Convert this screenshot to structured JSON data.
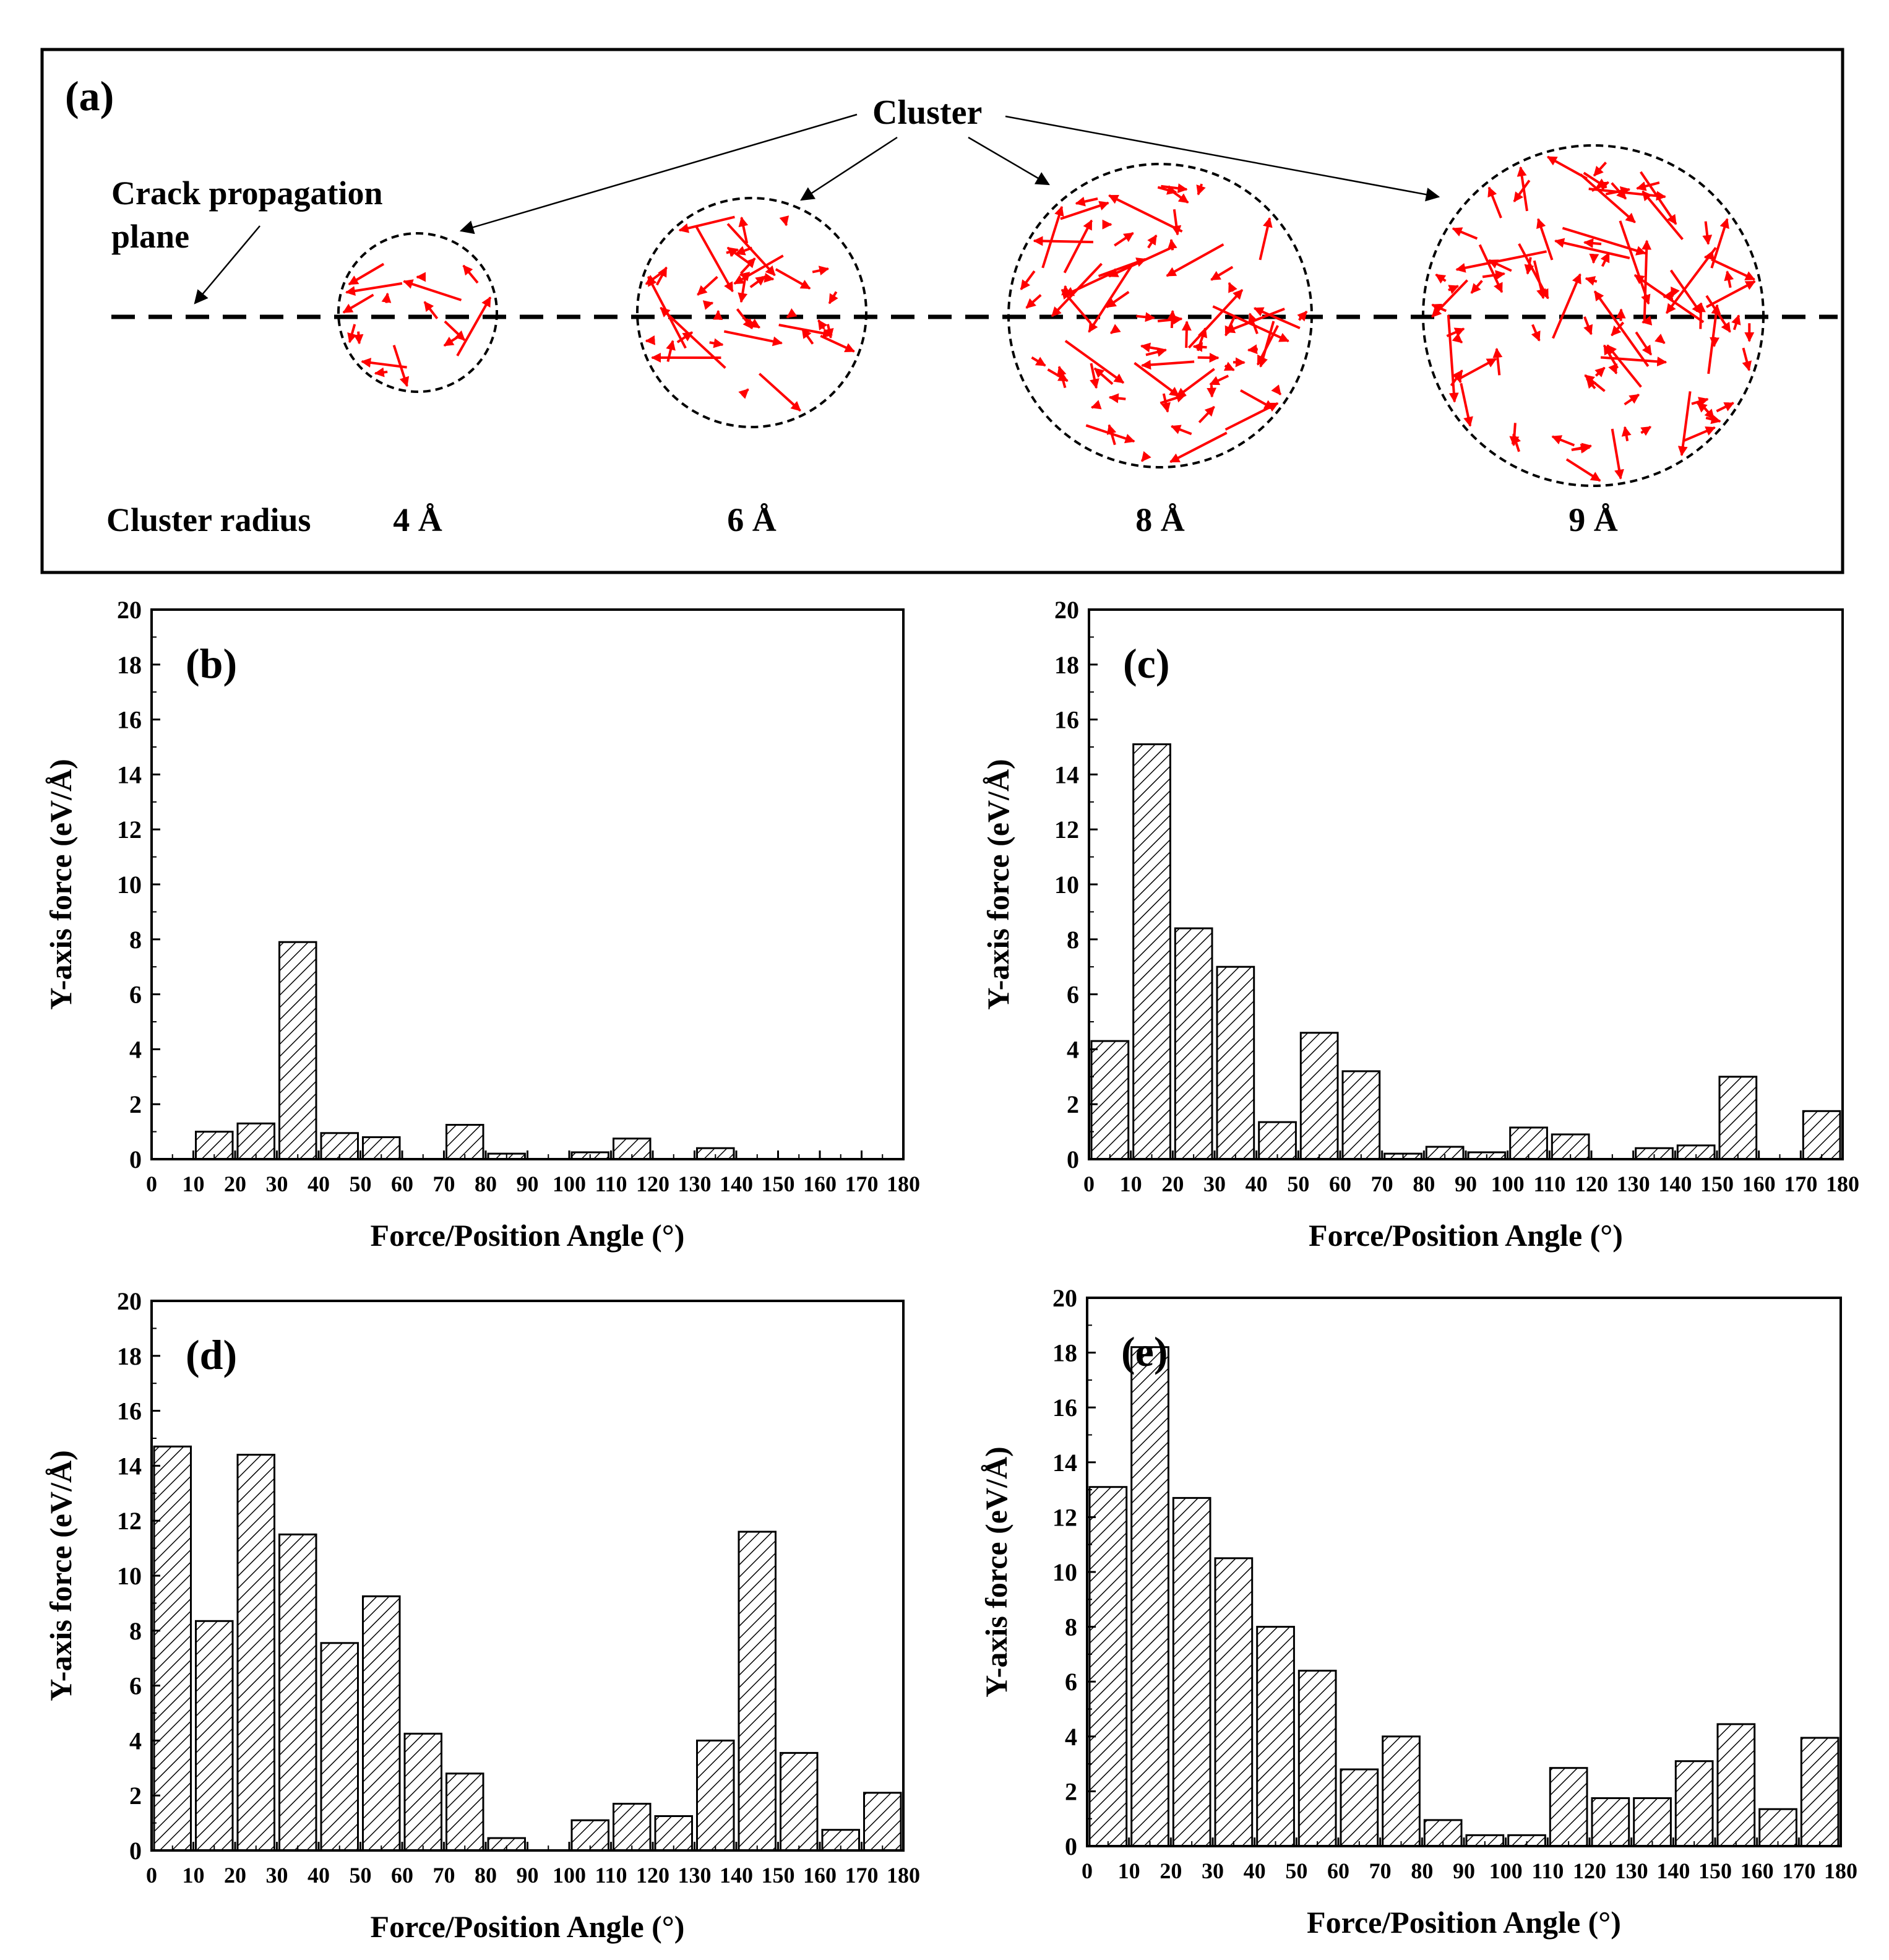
{
  "panel_a": {
    "label": "(a)",
    "cluster_label": "Cluster",
    "crack_label_line1": "Crack propagation",
    "crack_label_line2": "plane",
    "radius_title": "Cluster radius",
    "radii": [
      "4 Å",
      "6 Å",
      "8 Å",
      "9 Å"
    ],
    "arrow_color": "#ff0000"
  },
  "chart_data": [
    {
      "type": "bar",
      "panel": "(b)",
      "xlabel": "Force/Position Angle (°)",
      "ylabel": "Y-axis force (eV/Å)",
      "xlim": [
        0,
        180
      ],
      "ylim": [
        0,
        20
      ],
      "xticks": [
        0,
        10,
        20,
        30,
        40,
        50,
        60,
        70,
        80,
        90,
        100,
        110,
        120,
        130,
        140,
        150,
        160,
        170,
        180
      ],
      "yticks": [
        0,
        2,
        4,
        6,
        8,
        10,
        12,
        14,
        16,
        18,
        20
      ],
      "categories": [
        "5",
        "15",
        "25",
        "35",
        "45",
        "55",
        "65",
        "75",
        "85",
        "95",
        "105",
        "115",
        "125",
        "135",
        "145",
        "155",
        "165",
        "175"
      ],
      "values": [
        0,
        1.0,
        1.3,
        7.9,
        0.95,
        0.8,
        0,
        1.25,
        0.2,
        0,
        0.25,
        0.75,
        0,
        0.4,
        0,
        0,
        0,
        0
      ]
    },
    {
      "type": "bar",
      "panel": "(c)",
      "xlabel": "Force/Position Angle (°)",
      "ylabel": "Y-axis force (eV/Å)",
      "xlim": [
        0,
        180
      ],
      "ylim": [
        0,
        20
      ],
      "xticks": [
        0,
        10,
        20,
        30,
        40,
        50,
        60,
        70,
        80,
        90,
        100,
        110,
        120,
        130,
        140,
        150,
        160,
        170,
        180
      ],
      "yticks": [
        0,
        2,
        4,
        6,
        8,
        10,
        12,
        14,
        16,
        18,
        20
      ],
      "categories": [
        "5",
        "15",
        "25",
        "35",
        "45",
        "55",
        "65",
        "75",
        "85",
        "95",
        "105",
        "115",
        "125",
        "135",
        "145",
        "155",
        "165",
        "175"
      ],
      "values": [
        4.3,
        15.1,
        8.4,
        7.0,
        1.35,
        4.6,
        3.2,
        0.2,
        0.45,
        0.25,
        1.15,
        0.9,
        0,
        0.4,
        0.5,
        3.0,
        0,
        1.75
      ]
    },
    {
      "type": "bar",
      "panel": "(d)",
      "xlabel": "Force/Position Angle (°)",
      "ylabel": "Y-axis force (eV/Å)",
      "xlim": [
        0,
        180
      ],
      "ylim": [
        0,
        20
      ],
      "xticks": [
        0,
        10,
        20,
        30,
        40,
        50,
        60,
        70,
        80,
        90,
        100,
        110,
        120,
        130,
        140,
        150,
        160,
        170,
        180
      ],
      "yticks": [
        0,
        2,
        4,
        6,
        8,
        10,
        12,
        14,
        16,
        18,
        20
      ],
      "categories": [
        "5",
        "15",
        "25",
        "35",
        "45",
        "55",
        "65",
        "75",
        "85",
        "95",
        "105",
        "115",
        "125",
        "135",
        "145",
        "155",
        "165",
        "175"
      ],
      "values": [
        14.7,
        8.35,
        14.4,
        11.5,
        7.55,
        9.25,
        4.25,
        2.8,
        0.45,
        0,
        1.1,
        1.7,
        1.25,
        4.0,
        11.6,
        3.55,
        0.75,
        2.1
      ]
    },
    {
      "type": "bar",
      "panel": "(e)",
      "xlabel": "Force/Position Angle (°)",
      "ylabel": "Y-axis force (eV/Å)",
      "xlim": [
        0,
        180
      ],
      "ylim": [
        0,
        20
      ],
      "xticks": [
        0,
        10,
        20,
        30,
        40,
        50,
        60,
        70,
        80,
        90,
        100,
        110,
        120,
        130,
        140,
        150,
        160,
        170,
        180
      ],
      "yticks": [
        0,
        2,
        4,
        6,
        8,
        10,
        12,
        14,
        16,
        18,
        20
      ],
      "categories": [
        "5",
        "15",
        "25",
        "35",
        "45",
        "55",
        "65",
        "75",
        "85",
        "95",
        "105",
        "115",
        "125",
        "135",
        "145",
        "155",
        "165",
        "175"
      ],
      "values": [
        13.1,
        18.2,
        12.7,
        10.5,
        8.0,
        6.4,
        2.8,
        4.0,
        0.95,
        0.4,
        0.4,
        2.85,
        1.75,
        1.75,
        3.1,
        4.45,
        1.35,
        3.95
      ]
    }
  ]
}
